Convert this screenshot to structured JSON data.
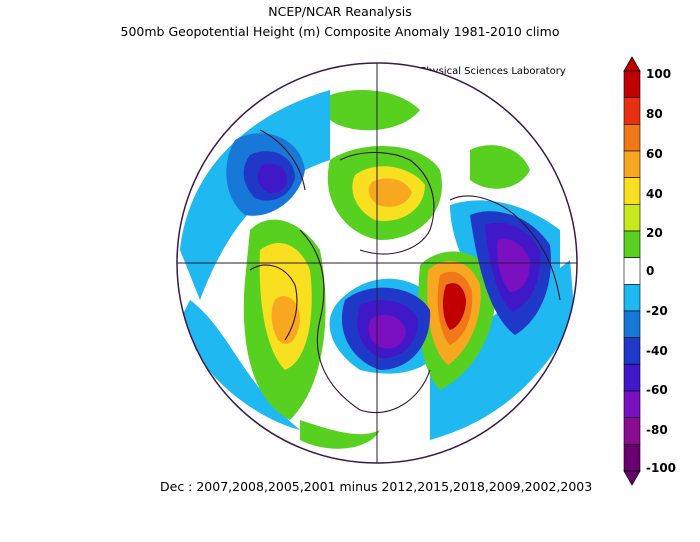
{
  "header": {
    "title": "NCEP/NCAR Reanalysis",
    "subtitle": "500mb Geopotential Height (m) Composite Anomaly 1981-2010 climo",
    "credit": "NOAA Physical Sciences Laboratory"
  },
  "footer": {
    "caption": "Dec : 2007,2008,2005,2001 minus 2012,2015,2018,2009,2002,2003"
  },
  "colorbar": {
    "labels": [
      "100",
      "80",
      "60",
      "40",
      "20",
      "0",
      "-20",
      "-40",
      "-60",
      "-80",
      "-100"
    ],
    "colors": [
      "#c00000",
      "#e83010",
      "#f07818",
      "#f8a820",
      "#f8e020",
      "#c8e820",
      "#58d020",
      "#ffffff",
      "#20b8f0",
      "#1878d8",
      "#2038c8",
      "#4018c8",
      "#7a10c0",
      "#8a0a90",
      "#6a0070"
    ]
  },
  "map": {
    "projection": "north polar stereographic",
    "features": [
      {
        "name": "ridge-north-pacific-icon",
        "anomaly": 100
      },
      {
        "name": "trough-north-america-icon",
        "anomaly": -70
      },
      {
        "name": "ridge-arctic-icon",
        "anomaly": 50
      },
      {
        "name": "trough-east-asia-icon",
        "anomaly": -70
      },
      {
        "name": "ridge-europe-atlantic-icon",
        "anomaly": 60
      },
      {
        "name": "trough-europe-north-icon",
        "anomaly": -60
      }
    ]
  }
}
